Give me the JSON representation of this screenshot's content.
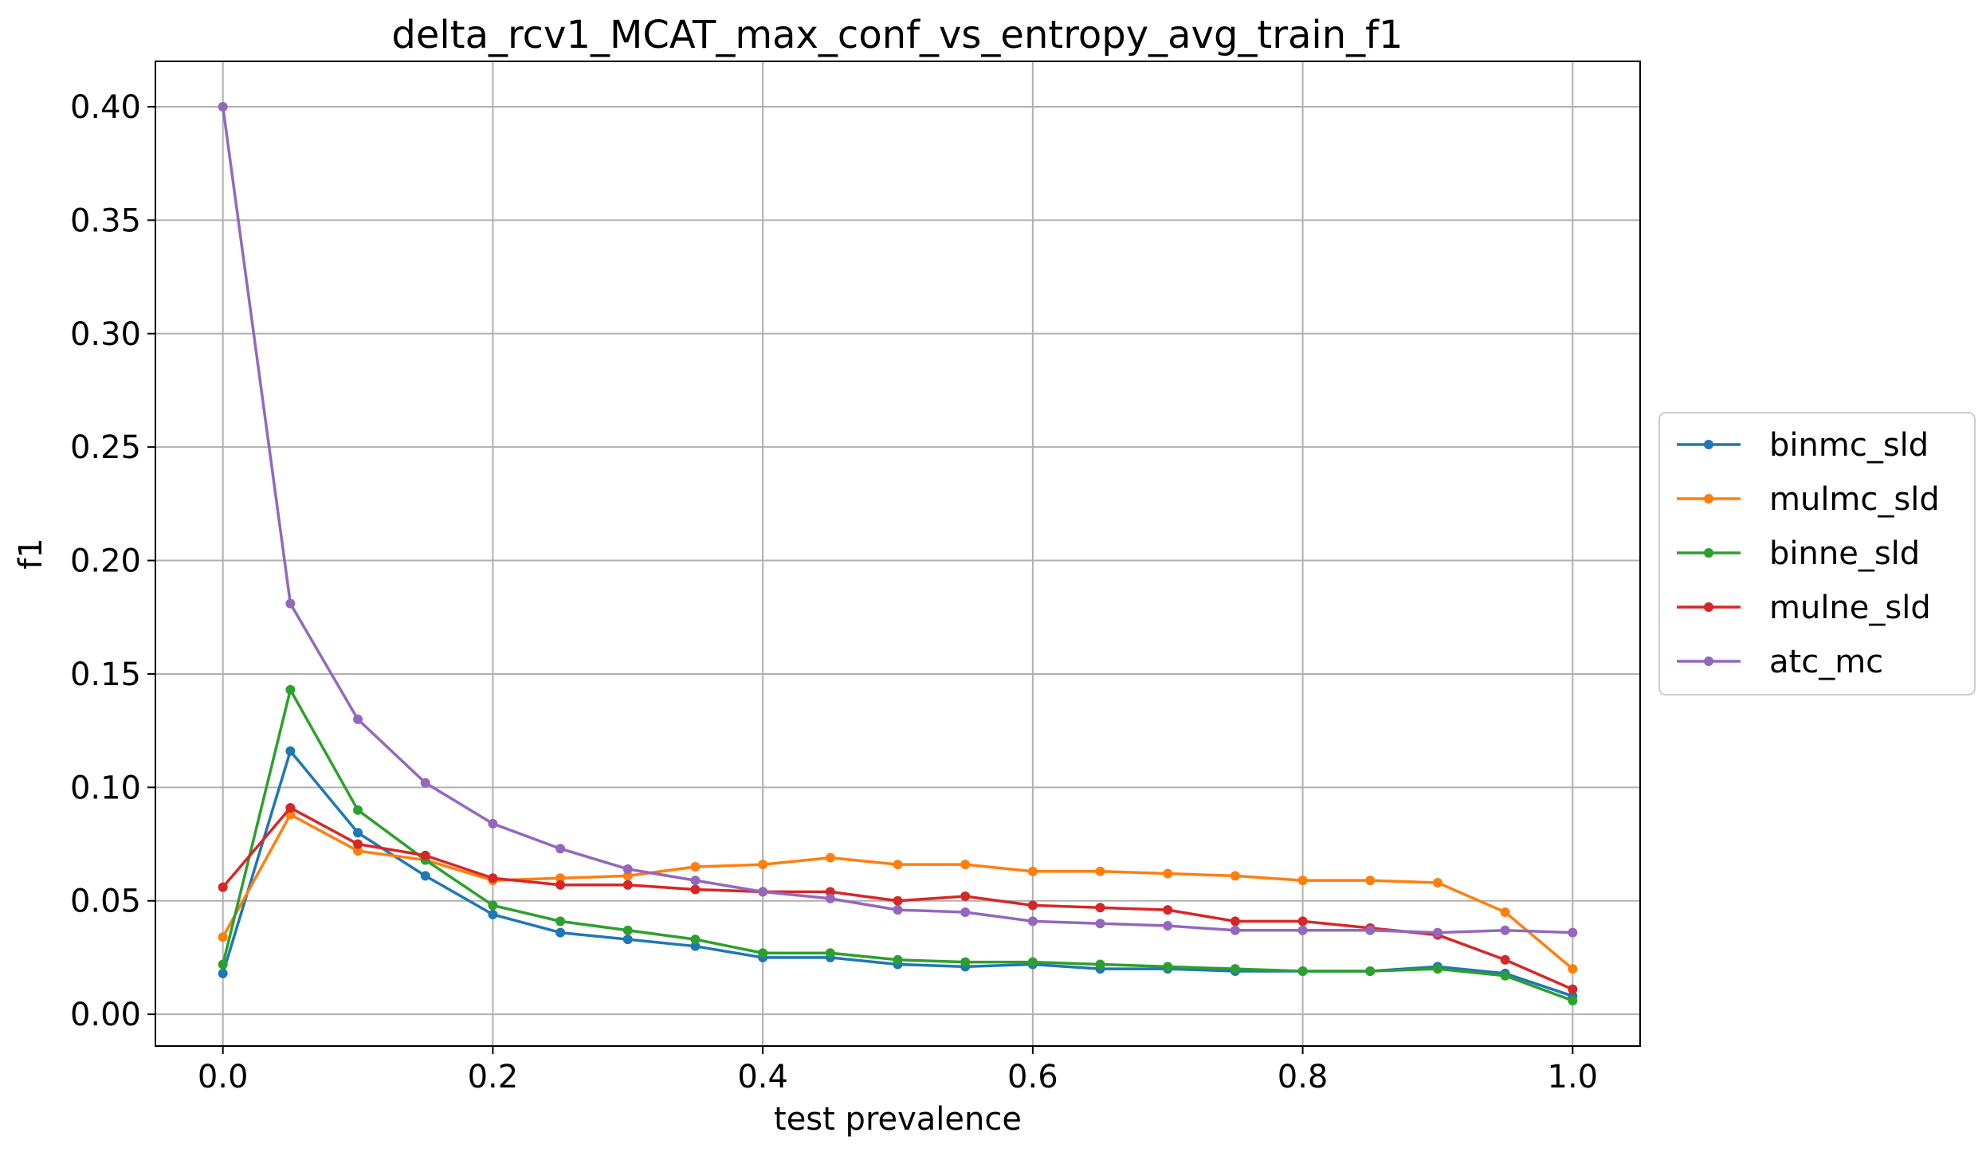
{
  "chart_data": {
    "type": "line",
    "title": "delta_rcv1_MCAT_max_conf_vs_entropy_avg_train_f1",
    "xlabel": "test prevalence",
    "ylabel": "f1",
    "xlim": [
      -0.05,
      1.05
    ],
    "ylim": [
      -0.014,
      0.42
    ],
    "x_ticks": [
      "0.0",
      "0.2",
      "0.4",
      "0.6",
      "0.8",
      "1.0"
    ],
    "y_ticks": [
      "0.00",
      "0.05",
      "0.10",
      "0.15",
      "0.20",
      "0.25",
      "0.30",
      "0.35",
      "0.40"
    ],
    "grid": true,
    "legend_position": "center-right-outside",
    "x": [
      0.0,
      0.05,
      0.1,
      0.15,
      0.2,
      0.25,
      0.3,
      0.35,
      0.4,
      0.45,
      0.5,
      0.55,
      0.6,
      0.65,
      0.7,
      0.75,
      0.8,
      0.85,
      0.9,
      0.95,
      1.0
    ],
    "series": [
      {
        "name": "binmc_sld",
        "color": "#1f77b4",
        "values": [
          0.018,
          0.116,
          0.08,
          0.061,
          0.044,
          0.036,
          0.033,
          0.03,
          0.025,
          0.025,
          0.022,
          0.021,
          0.022,
          0.02,
          0.02,
          0.019,
          0.019,
          0.019,
          0.021,
          0.018,
          0.008
        ]
      },
      {
        "name": "mulmc_sld",
        "color": "#ff7f0e",
        "values": [
          0.034,
          0.088,
          0.072,
          0.068,
          0.059,
          0.06,
          0.061,
          0.065,
          0.066,
          0.069,
          0.066,
          0.066,
          0.063,
          0.063,
          0.062,
          0.061,
          0.059,
          0.059,
          0.058,
          0.045,
          0.02
        ]
      },
      {
        "name": "binne_sld",
        "color": "#2ca02c",
        "values": [
          0.022,
          0.143,
          0.09,
          0.068,
          0.048,
          0.041,
          0.037,
          0.033,
          0.027,
          0.027,
          0.024,
          0.023,
          0.023,
          0.022,
          0.021,
          0.02,
          0.019,
          0.019,
          0.02,
          0.017,
          0.006
        ]
      },
      {
        "name": "mulne_sld",
        "color": "#d62728",
        "values": [
          0.056,
          0.091,
          0.075,
          0.07,
          0.06,
          0.057,
          0.057,
          0.055,
          0.054,
          0.054,
          0.05,
          0.052,
          0.048,
          0.047,
          0.046,
          0.041,
          0.041,
          0.038,
          0.035,
          0.024,
          0.011
        ]
      },
      {
        "name": "atc_mc",
        "color": "#9467bd",
        "values": [
          0.4,
          0.181,
          0.13,
          0.102,
          0.084,
          0.073,
          0.064,
          0.059,
          0.054,
          0.051,
          0.046,
          0.045,
          0.041,
          0.04,
          0.039,
          0.037,
          0.037,
          0.037,
          0.036,
          0.037,
          0.036
        ]
      }
    ]
  }
}
